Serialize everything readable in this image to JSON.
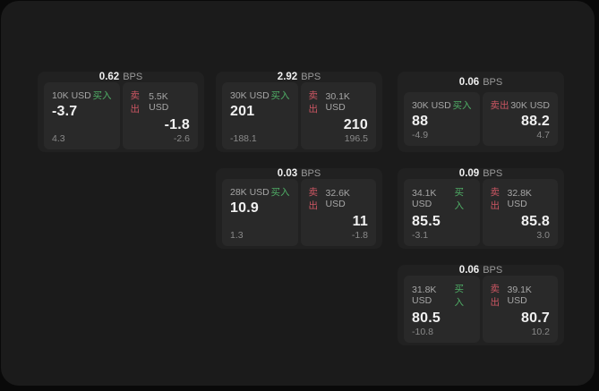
{
  "theme": {
    "surface_bg": "#1b1b1b",
    "card_bg": "#212121",
    "tile_bg": "#292929",
    "text_primary": "#f0f0f0",
    "text_secondary": "#a6a6a6",
    "text_muted": "#9a9a9a",
    "text_dim": "#8a8a8a",
    "buy_color": "#4fae66",
    "sell_color": "#cc5663"
  },
  "labels": {
    "bps": "BPS",
    "buy": "买入",
    "sell": "卖出"
  },
  "cards": [
    {
      "bps": "0.62",
      "buy": {
        "amount": "10K USD",
        "value": "-3.7",
        "delta": "4.3"
      },
      "sell": {
        "amount": "5.5K USD",
        "value": "-1.8",
        "delta": "-2.6"
      }
    },
    {
      "bps": "2.92",
      "buy": {
        "amount": "30K USD",
        "value": "201",
        "delta": "-188.1"
      },
      "sell": {
        "amount": "30.1K USD",
        "value": "210",
        "delta": "196.5"
      }
    },
    {
      "bps": "0.06",
      "buy": {
        "amount": "30K USD",
        "value": "88",
        "delta": "-4.9"
      },
      "sell": {
        "amount": "30K USD",
        "value": "88.2",
        "delta": "4.7"
      }
    },
    {
      "bps": "0.03",
      "buy": {
        "amount": "28K USD",
        "value": "10.9",
        "delta": "1.3"
      },
      "sell": {
        "amount": "32.6K USD",
        "value": "11",
        "delta": "-1.8"
      }
    },
    {
      "bps": "0.09",
      "buy": {
        "amount": "34.1K USD",
        "value": "85.5",
        "delta": "-3.1"
      },
      "sell": {
        "amount": "32.8K USD",
        "value": "85.8",
        "delta": "3.0"
      }
    },
    {
      "bps": "0.06",
      "buy": {
        "amount": "31.8K USD",
        "value": "80.5",
        "delta": "-10.8"
      },
      "sell": {
        "amount": "39.1K USD",
        "value": "80.7",
        "delta": "10.2"
      }
    }
  ]
}
